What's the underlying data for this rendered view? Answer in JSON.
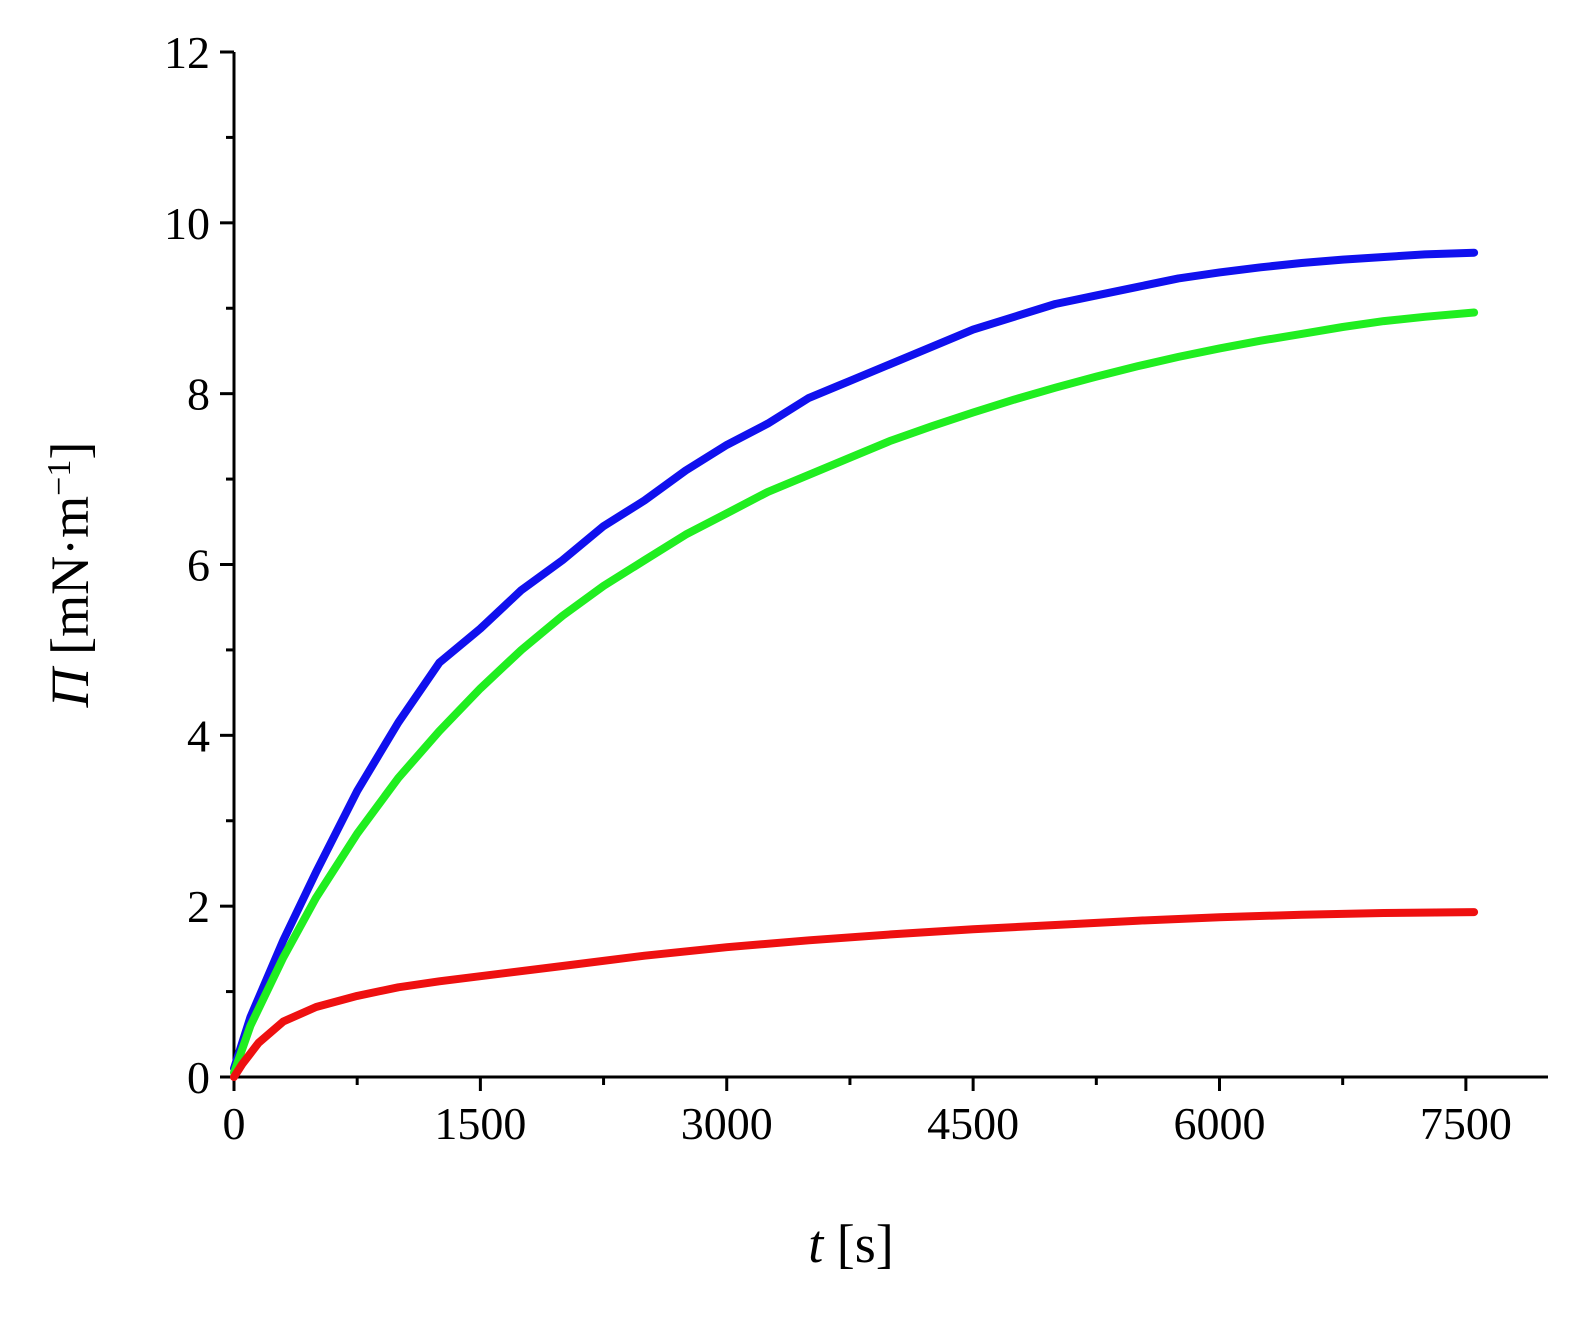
{
  "chart_data": {
    "type": "line",
    "xlabel": {
      "var": "t",
      "unit": " [s]"
    },
    "ylabel": {
      "var": "Π",
      "unit": " [mN·m",
      "sup": "−1",
      "close": "]"
    },
    "xlim": [
      0,
      8000
    ],
    "ylim": [
      0,
      12
    ],
    "x_ticks": [
      0,
      1500,
      3000,
      4500,
      6000,
      7500
    ],
    "x_tick_labels": [
      "0",
      "1500",
      "3000",
      "4500",
      "6000",
      "7500"
    ],
    "x_minor_ticks": [
      750,
      2250,
      3750,
      5250,
      6750
    ],
    "y_ticks": [
      0,
      2,
      4,
      6,
      8,
      10,
      12
    ],
    "y_tick_labels": [
      "0",
      "2",
      "4",
      "6",
      "8",
      "10",
      "12"
    ],
    "y_minor_ticks": [
      1,
      3,
      5,
      7,
      9,
      11
    ],
    "grid": false,
    "legend": "none",
    "series": [
      {
        "color": "#1010ee",
        "x": [
          0,
          100,
          300,
          500,
          750,
          1000,
          1250,
          1500,
          1750,
          2000,
          2250,
          2500,
          2750,
          3000,
          3250,
          3500,
          3750,
          4000,
          4250,
          4500,
          4750,
          5000,
          5250,
          5500,
          5750,
          6000,
          6250,
          6500,
          6750,
          7000,
          7250,
          7550
        ],
        "y": [
          0.1,
          0.7,
          1.6,
          2.4,
          3.35,
          4.15,
          4.85,
          5.25,
          5.7,
          6.05,
          6.45,
          6.75,
          7.1,
          7.4,
          7.65,
          7.95,
          8.15,
          8.35,
          8.55,
          8.75,
          8.9,
          9.05,
          9.15,
          9.25,
          9.35,
          9.42,
          9.48,
          9.53,
          9.57,
          9.6,
          9.63,
          9.65
        ]
      },
      {
        "color": "#20ee20",
        "x": [
          0,
          100,
          300,
          500,
          750,
          1000,
          1250,
          1500,
          1750,
          2000,
          2250,
          2500,
          2750,
          3000,
          3250,
          3500,
          3750,
          4000,
          4250,
          4500,
          4750,
          5000,
          5250,
          5500,
          5750,
          6000,
          6250,
          6500,
          6750,
          7000,
          7250,
          7550
        ],
        "y": [
          0.05,
          0.6,
          1.4,
          2.1,
          2.85,
          3.5,
          4.05,
          4.55,
          5.0,
          5.4,
          5.75,
          6.05,
          6.35,
          6.6,
          6.85,
          7.05,
          7.25,
          7.45,
          7.62,
          7.78,
          7.93,
          8.07,
          8.2,
          8.32,
          8.43,
          8.53,
          8.62,
          8.7,
          8.78,
          8.85,
          8.9,
          8.95
        ]
      },
      {
        "color": "#ee1010",
        "x": [
          0,
          50,
          150,
          300,
          500,
          750,
          1000,
          1250,
          1500,
          2000,
          2500,
          3000,
          3500,
          4000,
          4500,
          5000,
          5500,
          6000,
          6500,
          7000,
          7550
        ],
        "y": [
          0.0,
          0.15,
          0.4,
          0.65,
          0.82,
          0.95,
          1.05,
          1.12,
          1.18,
          1.3,
          1.42,
          1.52,
          1.6,
          1.67,
          1.73,
          1.78,
          1.83,
          1.87,
          1.9,
          1.92,
          1.93
        ]
      }
    ]
  }
}
